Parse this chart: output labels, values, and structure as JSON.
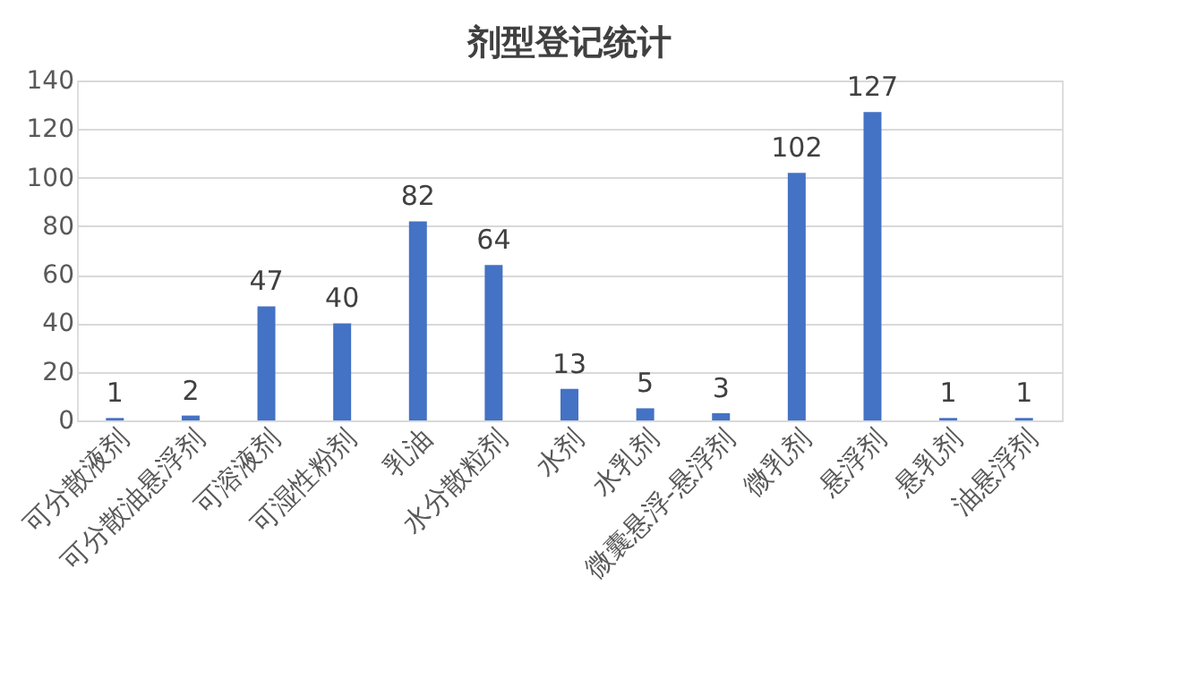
{
  "chart_data": {
    "type": "bar",
    "title": "剂型登记统计",
    "categories": [
      "可分散液剂",
      "可分散油悬浮剂",
      "可溶液剂",
      "可湿性粉剂",
      "乳油",
      "水分散粒剂",
      "水剂",
      "水乳剂",
      "微囊悬浮-悬浮剂",
      "微乳剂",
      "悬浮剂",
      "悬乳剂",
      "油悬浮剂"
    ],
    "values": [
      1,
      2,
      47,
      40,
      82,
      64,
      13,
      5,
      3,
      102,
      127,
      1,
      1
    ],
    "color": "#4472c4",
    "ylim": [
      0,
      140
    ],
    "yticks": [
      0,
      20,
      40,
      60,
      80,
      100,
      120,
      140
    ],
    "grid": "y",
    "data_labels": true
  }
}
